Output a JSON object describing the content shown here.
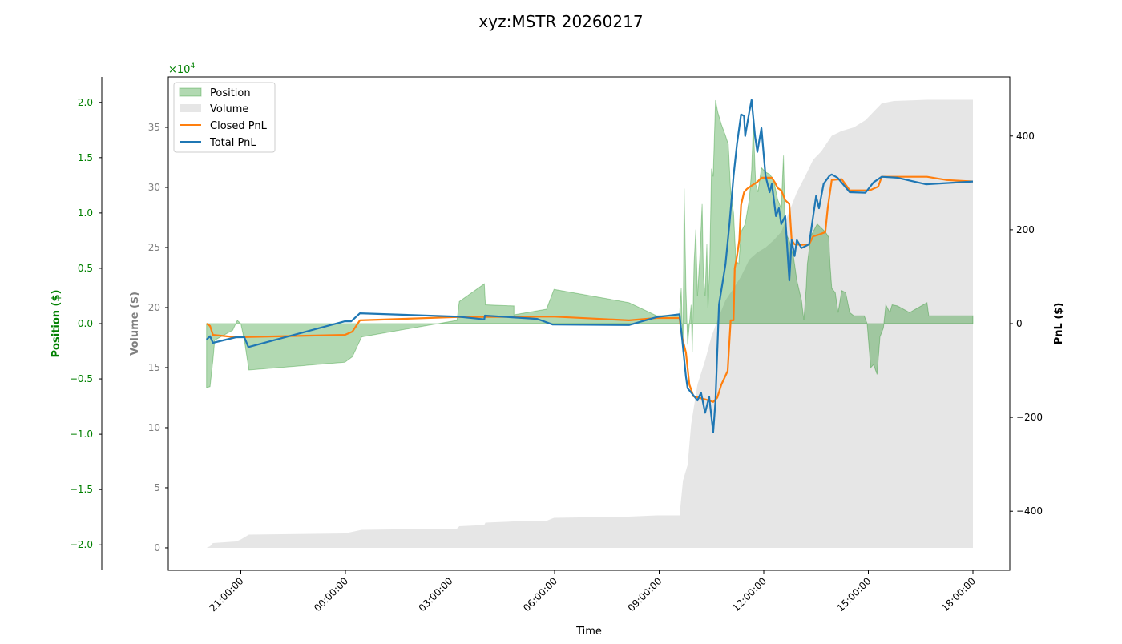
{
  "chart_data": {
    "type": "line",
    "title": "xyz:MSTR 20260217",
    "xlabel": "Time",
    "x_ticks": [
      "21:00:00",
      "00:00:00",
      "03:00:00",
      "06:00:00",
      "09:00:00",
      "12:00:00",
      "15:00:00",
      "18:00:00"
    ],
    "legend_placement": "top-left",
    "grid": false,
    "axes": {
      "position": {
        "label": "Position ($)",
        "scale_label": "×10^4",
        "range": [
          -2.23,
          2.23
        ],
        "ticks": [
          "2.0",
          "1.5",
          "1.0",
          "0.5",
          "0.0",
          "−0.5",
          "−1.0",
          "−1.5",
          "−2.0"
        ],
        "color": "#008000"
      },
      "volume": {
        "label": "Volume ($)",
        "range": [
          -1.87,
          39.2
        ],
        "ticks": [
          "0",
          "5",
          "10",
          "15",
          "20",
          "25",
          "30",
          "35"
        ],
        "color": "#808080"
      },
      "pnl": {
        "label": "PnL ($)",
        "range": [
          -526,
          526
        ],
        "ticks": [
          "400",
          "200",
          "0",
          "−200",
          "−400"
        ],
        "color": "#000000"
      }
    },
    "series": [
      {
        "name": "Position",
        "kind": "area",
        "axis": "position",
        "color": "#008000",
        "points": [
          [
            "20:01",
            -0.58
          ],
          [
            "20:07",
            -0.57
          ],
          [
            "20:12",
            -0.33
          ],
          [
            "20:15",
            -0.15
          ],
          [
            "20:46",
            -0.06
          ],
          [
            "20:54",
            0.03
          ],
          [
            "21:00",
            0
          ],
          [
            "21:06",
            -0.15
          ],
          [
            "21:14",
            -0.42
          ],
          [
            "23:59",
            -0.35
          ],
          [
            "00:12",
            -0.3
          ],
          [
            "00:28",
            -0.12
          ],
          [
            "03:12",
            0.03
          ],
          [
            "03:16",
            0.2
          ],
          [
            "03:59",
            0.36
          ],
          [
            "04:01",
            0.17
          ],
          [
            "04:50",
            0.16
          ],
          [
            "04:50",
            0.08
          ],
          [
            "05:46",
            0.13
          ],
          [
            "05:59",
            0.31
          ],
          [
            "08:08",
            0.19
          ],
          [
            "08:56",
            0.07
          ],
          [
            "09:35",
            0.08
          ],
          [
            "09:38",
            0.32
          ],
          [
            "09:41",
            -0.26
          ],
          [
            "09:43",
            1.22
          ],
          [
            "09:46",
            0.32
          ],
          [
            "09:49",
            -0.19
          ],
          [
            "09:55",
            0.17
          ],
          [
            "09:57",
            -0.26
          ],
          [
            "10:00",
            0.54
          ],
          [
            "10:03",
            0.85
          ],
          [
            "10:06",
            0.25
          ],
          [
            "10:10",
            0.61
          ],
          [
            "10:14",
            1.08
          ],
          [
            "10:16",
            0.46
          ],
          [
            "10:19",
            0.25
          ],
          [
            "10:22",
            0.72
          ],
          [
            "10:24",
            0.14
          ],
          [
            "10:27",
            0.54
          ],
          [
            "10:30",
            1.4
          ],
          [
            "10:33",
            1.33
          ],
          [
            "10:37",
            2.02
          ],
          [
            "10:41",
            1.91
          ],
          [
            "10:47",
            1.8
          ],
          [
            "10:54",
            1.7
          ],
          [
            "10:59",
            1.62
          ],
          [
            "11:03",
            1.19
          ],
          [
            "11:08",
            1.0
          ],
          [
            "11:12",
            0.57
          ],
          [
            "11:17",
            0.54
          ],
          [
            "11:21",
            0.83
          ],
          [
            "11:28",
            0.9
          ],
          [
            "11:35",
            1.12
          ],
          [
            "11:39",
            1.38
          ],
          [
            "11:42",
            1.81
          ],
          [
            "11:46",
            1.26
          ],
          [
            "11:50",
            1.19
          ],
          [
            "11:56",
            1.41
          ],
          [
            "12:03",
            1.37
          ],
          [
            "12:10",
            1.35
          ],
          [
            "12:17",
            1.3
          ],
          [
            "12:24",
            1.12
          ],
          [
            "12:30",
            1.04
          ],
          [
            "12:34",
            1.52
          ],
          [
            "12:37",
            0.83
          ],
          [
            "12:44",
            0.75
          ],
          [
            "12:51",
            0.61
          ],
          [
            "12:57",
            0.39
          ],
          [
            "13:05",
            0.21
          ],
          [
            "13:09",
            0.03
          ],
          [
            "13:13",
            0.32
          ],
          [
            "13:15",
            0.54
          ],
          [
            "13:21",
            0.79
          ],
          [
            "13:32",
            0.9
          ],
          [
            "13:46",
            0.83
          ],
          [
            "13:52",
            0.78
          ],
          [
            "13:54",
            0.54
          ],
          [
            "13:57",
            0.32
          ],
          [
            "14:03",
            0.28
          ],
          [
            "14:08",
            0.1
          ],
          [
            "14:14",
            0.3
          ],
          [
            "14:21",
            0.28
          ],
          [
            "14:28",
            0.1
          ],
          [
            "14:35",
            0.07
          ],
          [
            "14:53",
            0.07
          ],
          [
            "14:58",
            0.0
          ],
          [
            "15:04",
            -0.4
          ],
          [
            "15:09",
            -0.37
          ],
          [
            "15:15",
            -0.46
          ],
          [
            "15:20",
            -0.12
          ],
          [
            "15:26",
            -0.04
          ],
          [
            "15:30",
            0.17
          ],
          [
            "15:37",
            0.1
          ],
          [
            "15:41",
            0.17
          ],
          [
            "15:50",
            0.16
          ],
          [
            "16:11",
            0.1
          ],
          [
            "16:41",
            0.19
          ],
          [
            "16:44",
            0.07
          ],
          [
            "18:00",
            0.07
          ]
        ]
      },
      {
        "name": "Volume",
        "kind": "area",
        "axis": "volume",
        "color": "#808080",
        "points": [
          [
            "20:01",
            0
          ],
          [
            "20:07",
            0.13
          ],
          [
            "20:12",
            0.4
          ],
          [
            "20:52",
            0.53
          ],
          [
            "21:00",
            0.7
          ],
          [
            "21:14",
            1.1
          ],
          [
            "23:59",
            1.2
          ],
          [
            "00:28",
            1.5
          ],
          [
            "03:12",
            1.6
          ],
          [
            "03:16",
            1.8
          ],
          [
            "03:59",
            1.9
          ],
          [
            "04:01",
            2.1
          ],
          [
            "04:50",
            2.2
          ],
          [
            "05:46",
            2.25
          ],
          [
            "05:59",
            2.5
          ],
          [
            "08:08",
            2.6
          ],
          [
            "08:56",
            2.7
          ],
          [
            "09:35",
            2.7
          ],
          [
            "09:41",
            5.6
          ],
          [
            "09:49",
            6.9
          ],
          [
            "09:55",
            10.3
          ],
          [
            "10:06",
            13.6
          ],
          [
            "10:19",
            15.6
          ],
          [
            "10:30",
            17.6
          ],
          [
            "10:40",
            18.9
          ],
          [
            "10:54",
            20.6
          ],
          [
            "11:08",
            21.6
          ],
          [
            "11:21",
            22.6
          ],
          [
            "11:35",
            24.0
          ],
          [
            "11:49",
            24.6
          ],
          [
            "12:03",
            25.0
          ],
          [
            "12:17",
            25.6
          ],
          [
            "12:30",
            26.3
          ],
          [
            "12:44",
            28.0
          ],
          [
            "12:57",
            29.6
          ],
          [
            "13:12",
            31.0
          ],
          [
            "13:25",
            32.3
          ],
          [
            "13:39",
            33.0
          ],
          [
            "13:57",
            34.3
          ],
          [
            "14:14",
            34.7
          ],
          [
            "14:35",
            35.0
          ],
          [
            "14:55",
            35.6
          ],
          [
            "15:09",
            36.3
          ],
          [
            "15:23",
            37.0
          ],
          [
            "15:44",
            37.2
          ],
          [
            "16:41",
            37.3
          ],
          [
            "18:00",
            37.3
          ]
        ]
      },
      {
        "name": "Closed PnL",
        "kind": "line",
        "axis": "pnl",
        "color": "#ff7f0e",
        "points": [
          [
            "20:01",
            0
          ],
          [
            "20:07",
            -5
          ],
          [
            "20:12",
            -24
          ],
          [
            "20:52",
            -29
          ],
          [
            "23:59",
            -24
          ],
          [
            "00:12",
            -17
          ],
          [
            "00:25",
            7
          ],
          [
            "03:12",
            14
          ],
          [
            "05:57",
            15
          ],
          [
            "08:08",
            7
          ],
          [
            "08:56",
            12
          ],
          [
            "09:35",
            12
          ],
          [
            "09:39",
            -27
          ],
          [
            "09:46",
            -62
          ],
          [
            "09:52",
            -130
          ],
          [
            "09:59",
            -155
          ],
          [
            "10:26",
            -164
          ],
          [
            "10:33",
            -167
          ],
          [
            "10:40",
            -158
          ],
          [
            "10:47",
            -130
          ],
          [
            "10:58",
            -101
          ],
          [
            "11:03",
            7
          ],
          [
            "11:08",
            7
          ],
          [
            "11:10",
            118
          ],
          [
            "11:14",
            144
          ],
          [
            "11:18",
            178
          ],
          [
            "11:21",
            253
          ],
          [
            "11:26",
            280
          ],
          [
            "11:31",
            287
          ],
          [
            "11:39",
            294
          ],
          [
            "11:49",
            302
          ],
          [
            "11:56",
            311
          ],
          [
            "12:14",
            311
          ],
          [
            "12:19",
            301
          ],
          [
            "12:24",
            289
          ],
          [
            "12:30",
            284
          ],
          [
            "12:37",
            263
          ],
          [
            "12:44",
            255
          ],
          [
            "12:48",
            178
          ],
          [
            "12:53",
            169
          ],
          [
            "13:05",
            168
          ],
          [
            "13:18",
            169
          ],
          [
            "13:25",
            186
          ],
          [
            "13:36",
            190
          ],
          [
            "13:46",
            195
          ],
          [
            "13:50",
            246
          ],
          [
            "13:57",
            306
          ],
          [
            "14:14",
            308
          ],
          [
            "14:28",
            284
          ],
          [
            "15:02",
            284
          ],
          [
            "15:17",
            292
          ],
          [
            "15:23",
            313
          ],
          [
            "16:41",
            313
          ],
          [
            "17:15",
            306
          ],
          [
            "18:00",
            303
          ]
        ]
      },
      {
        "name": "Total PnL",
        "kind": "line",
        "axis": "pnl",
        "color": "#1f77b4",
        "points": [
          [
            "20:01",
            -34
          ],
          [
            "20:07",
            -27
          ],
          [
            "20:12",
            -41
          ],
          [
            "20:52",
            -29
          ],
          [
            "21:06",
            -29
          ],
          [
            "21:13",
            -50
          ],
          [
            "23:59",
            5
          ],
          [
            "00:10",
            5
          ],
          [
            "00:25",
            22
          ],
          [
            "03:12",
            15
          ],
          [
            "03:59",
            9
          ],
          [
            "04:00",
            17
          ],
          [
            "05:30",
            10
          ],
          [
            "05:57",
            -2
          ],
          [
            "08:08",
            -3
          ],
          [
            "08:56",
            14
          ],
          [
            "09:35",
            20
          ],
          [
            "09:39",
            -27
          ],
          [
            "09:46",
            -113
          ],
          [
            "09:49",
            -138
          ],
          [
            "09:55",
            -147
          ],
          [
            "10:06",
            -164
          ],
          [
            "10:12",
            -147
          ],
          [
            "10:19",
            -190
          ],
          [
            "10:26",
            -156
          ],
          [
            "10:33",
            -232
          ],
          [
            "10:37",
            -164
          ],
          [
            "10:43",
            41
          ],
          [
            "10:54",
            126
          ],
          [
            "11:01",
            212
          ],
          [
            "11:08",
            315
          ],
          [
            "11:14",
            383
          ],
          [
            "11:21",
            446
          ],
          [
            "11:26",
            443
          ],
          [
            "11:28",
            400
          ],
          [
            "11:35",
            451
          ],
          [
            "11:39",
            477
          ],
          [
            "11:45",
            400
          ],
          [
            "11:49",
            366
          ],
          [
            "11:56",
            417
          ],
          [
            "12:03",
            315
          ],
          [
            "12:10",
            280
          ],
          [
            "12:14",
            298
          ],
          [
            "12:21",
            229
          ],
          [
            "12:26",
            246
          ],
          [
            "12:30",
            212
          ],
          [
            "12:37",
            229
          ],
          [
            "12:44",
            92
          ],
          [
            "12:48",
            178
          ],
          [
            "12:53",
            144
          ],
          [
            "12:57",
            178
          ],
          [
            "13:05",
            161
          ],
          [
            "13:18",
            169
          ],
          [
            "13:30",
            272
          ],
          [
            "13:35",
            246
          ],
          [
            "13:43",
            298
          ],
          [
            "13:53",
            315
          ],
          [
            "13:57",
            318
          ],
          [
            "14:07",
            311
          ],
          [
            "14:28",
            280
          ],
          [
            "14:55",
            279
          ],
          [
            "15:09",
            301
          ],
          [
            "15:23",
            313
          ],
          [
            "15:50",
            311
          ],
          [
            "16:39",
            297
          ],
          [
            "18:00",
            303
          ]
        ]
      }
    ]
  }
}
